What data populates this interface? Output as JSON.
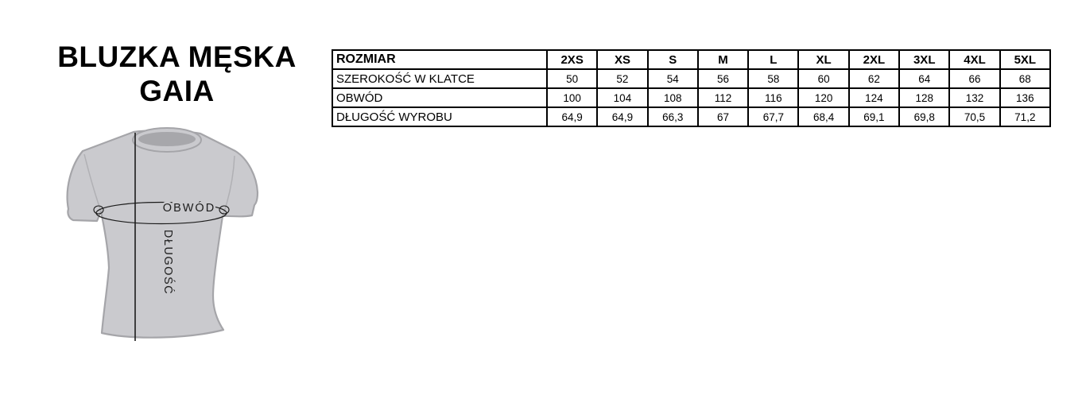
{
  "title": {
    "line1": "BLUZKA MĘSKA",
    "line2": "GAIA"
  },
  "diagram": {
    "obwod_label": "OBWÓD",
    "dlugosc_label": "DŁUGOŚĆ",
    "colors": {
      "shirt_fill": "#cacace",
      "shirt_outline": "#a5a5a9",
      "collar_fill": "#a7a7ab",
      "measure_line": "#1c1c1c"
    }
  },
  "size_table": {
    "columns": [
      "ROZMIAR",
      "2XS",
      "XS",
      "S",
      "M",
      "L",
      "XL",
      "2XL",
      "3XL",
      "4XL",
      "5XL"
    ],
    "rows": [
      {
        "label": "SZEROKOŚĆ W KLATCE",
        "values": [
          "50",
          "52",
          "54",
          "56",
          "58",
          "60",
          "62",
          "64",
          "66",
          "68"
        ]
      },
      {
        "label": "OBWÓD",
        "values": [
          "100",
          "104",
          "108",
          "112",
          "116",
          "120",
          "124",
          "128",
          "132",
          "136"
        ]
      },
      {
        "label": "DŁUGOŚĆ WYROBU",
        "values": [
          "64,9",
          "64,9",
          "66,3",
          "67",
          "67,7",
          "68,4",
          "69,1",
          "69,8",
          "70,5",
          "71,2"
        ]
      }
    ]
  }
}
